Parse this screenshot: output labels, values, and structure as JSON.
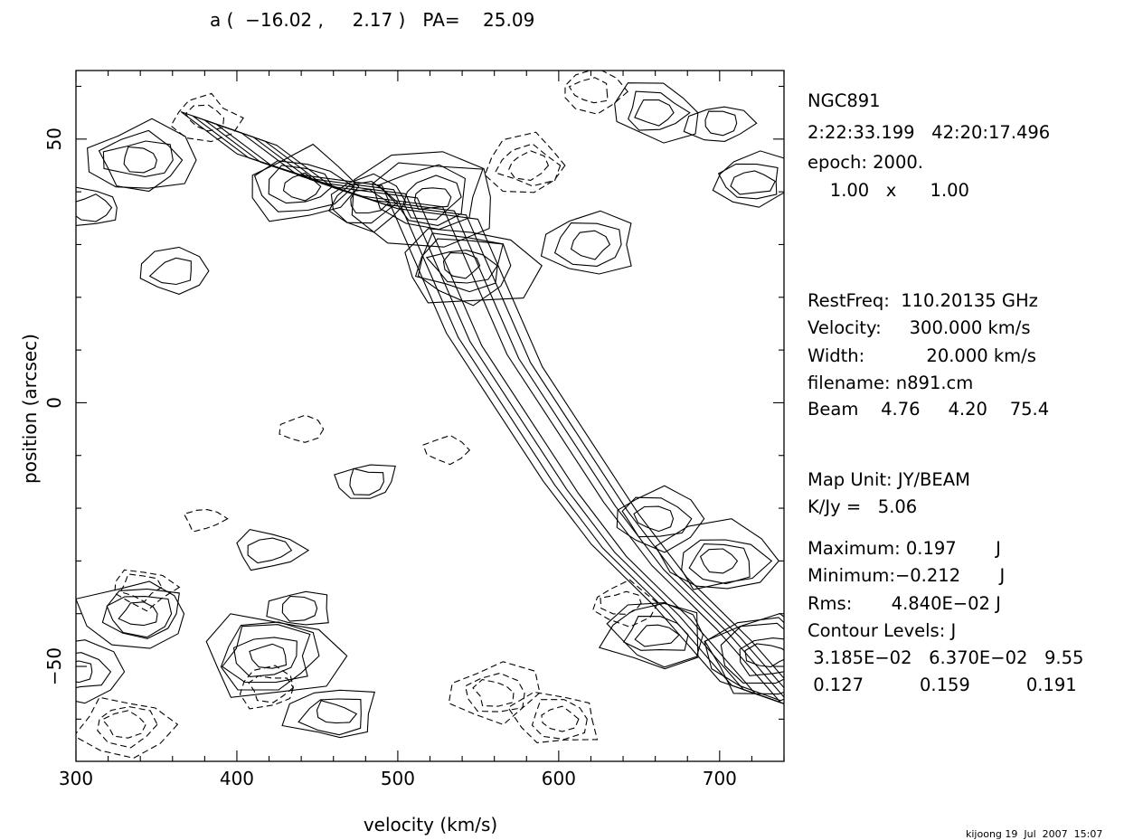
{
  "header": {
    "title": "a (  −16.02 ,     2.17 )   PA=    25.09"
  },
  "info": {
    "source": "NGC891",
    "coords": "2:22:33.199   42:20:17.496",
    "epoch": "epoch: 2000.",
    "scale": "    1.00   x      1.00",
    "restfreq": "RestFreq:  110.20135 GHz",
    "velocity": "Velocity:     300.000 km/s",
    "width": "Width:           20.000 km/s",
    "filename": "filename: n891.cm",
    "beam": "Beam    4.76     4.20    75.4",
    "map_unit": "Map Unit: JY/BEAM",
    "kjy": "K/Jy =   5.06",
    "maximum": "Maximum: 0.197       J",
    "minimum": "Minimum:−0.212       J",
    "rms": "Rms:       4.840E−02 J",
    "contour_levels": "Contour Levels: J",
    "levels_row1": " 3.185E−02   6.370E−02   9.55",
    "levels_row2": " 0.127          0.159          0.191"
  },
  "footer": {
    "stamp": "kijoong 19  Jul  2007  15:07"
  },
  "chart_data": {
    "type": "contour",
    "title": "",
    "xlabel": "velocity (km/s)",
    "ylabel": "position (arcsec)",
    "xlim": [
      300,
      740
    ],
    "ylim": [
      -68,
      63
    ],
    "xticks": [
      300,
      400,
      500,
      600,
      700
    ],
    "yticks": [
      -50,
      0,
      50
    ],
    "contour_levels": [
      0.03185,
      0.0637,
      0.0955,
      0.127,
      0.159,
      0.191
    ],
    "negative_levels_dashed": true,
    "positive_lanes": [
      {
        "name": "main-ridge",
        "points": [
          [
            395,
            52
          ],
          [
            430,
            44
          ],
          [
            470,
            40
          ],
          [
            520,
            38
          ],
          [
            540,
            24
          ],
          [
            560,
            10
          ],
          [
            590,
            -4
          ],
          [
            620,
            -18
          ],
          [
            650,
            -30
          ],
          [
            690,
            -42
          ],
          [
            730,
            -56
          ]
        ]
      }
    ],
    "peaks": [
      {
        "x": 340,
        "y": 46,
        "level": 0.127,
        "sign": 1
      },
      {
        "x": 440,
        "y": 41,
        "level": 0.127,
        "sign": 1
      },
      {
        "x": 520,
        "y": 39,
        "level": 0.159,
        "sign": 1
      },
      {
        "x": 540,
        "y": 26,
        "level": 0.159,
        "sign": 1
      },
      {
        "x": 620,
        "y": 30,
        "level": 0.0955,
        "sign": 1
      },
      {
        "x": 660,
        "y": 55,
        "level": 0.0955,
        "sign": 1
      },
      {
        "x": 700,
        "y": 53,
        "level": 0.0637,
        "sign": 1
      },
      {
        "x": 720,
        "y": 42,
        "level": 0.0955,
        "sign": 1
      },
      {
        "x": 660,
        "y": -22,
        "level": 0.0955,
        "sign": 1
      },
      {
        "x": 700,
        "y": -30,
        "level": 0.127,
        "sign": 1
      },
      {
        "x": 660,
        "y": -44,
        "level": 0.127,
        "sign": 1
      },
      {
        "x": 340,
        "y": -40,
        "level": 0.127,
        "sign": 1
      },
      {
        "x": 420,
        "y": -48,
        "level": 0.159,
        "sign": 1
      },
      {
        "x": 460,
        "y": -59,
        "level": 0.0955,
        "sign": 1
      },
      {
        "x": 730,
        "y": -48,
        "level": 0.159,
        "sign": 1
      },
      {
        "x": 300,
        "y": -51,
        "level": 0.0955,
        "sign": 1
      },
      {
        "x": 480,
        "y": 38,
        "level": 0.0955,
        "sign": 1
      },
      {
        "x": 360,
        "y": 25,
        "level": 0.0637,
        "sign": 1
      },
      {
        "x": 420,
        "y": -28,
        "level": 0.0637,
        "sign": 1
      },
      {
        "x": 440,
        "y": -39,
        "level": 0.0637,
        "sign": 1
      },
      {
        "x": 480,
        "y": -15,
        "level": 0.0637,
        "sign": 1
      },
      {
        "x": 310,
        "y": 37,
        "level": 0.0637,
        "sign": 1
      },
      {
        "x": 330,
        "y": -61,
        "level": -0.0955,
        "sign": -1
      },
      {
        "x": 560,
        "y": -55,
        "level": -0.0955,
        "sign": -1
      },
      {
        "x": 600,
        "y": -60,
        "level": -0.0955,
        "sign": -1
      },
      {
        "x": 420,
        "y": -54,
        "level": -0.0637,
        "sign": -1
      },
      {
        "x": 640,
        "y": -38,
        "level": -0.0637,
        "sign": -1
      },
      {
        "x": 580,
        "y": 45,
        "level": -0.0955,
        "sign": -1
      },
      {
        "x": 620,
        "y": 59,
        "level": -0.0637,
        "sign": -1
      },
      {
        "x": 380,
        "y": 54,
        "level": -0.0637,
        "sign": -1
      },
      {
        "x": 340,
        "y": -35,
        "level": -0.0637,
        "sign": -1
      },
      {
        "x": 530,
        "y": -9,
        "level": -0.0318,
        "sign": -1
      },
      {
        "x": 380,
        "y": -22,
        "level": -0.0318,
        "sign": -1
      },
      {
        "x": 440,
        "y": -5,
        "level": -0.0318,
        "sign": -1
      }
    ]
  }
}
